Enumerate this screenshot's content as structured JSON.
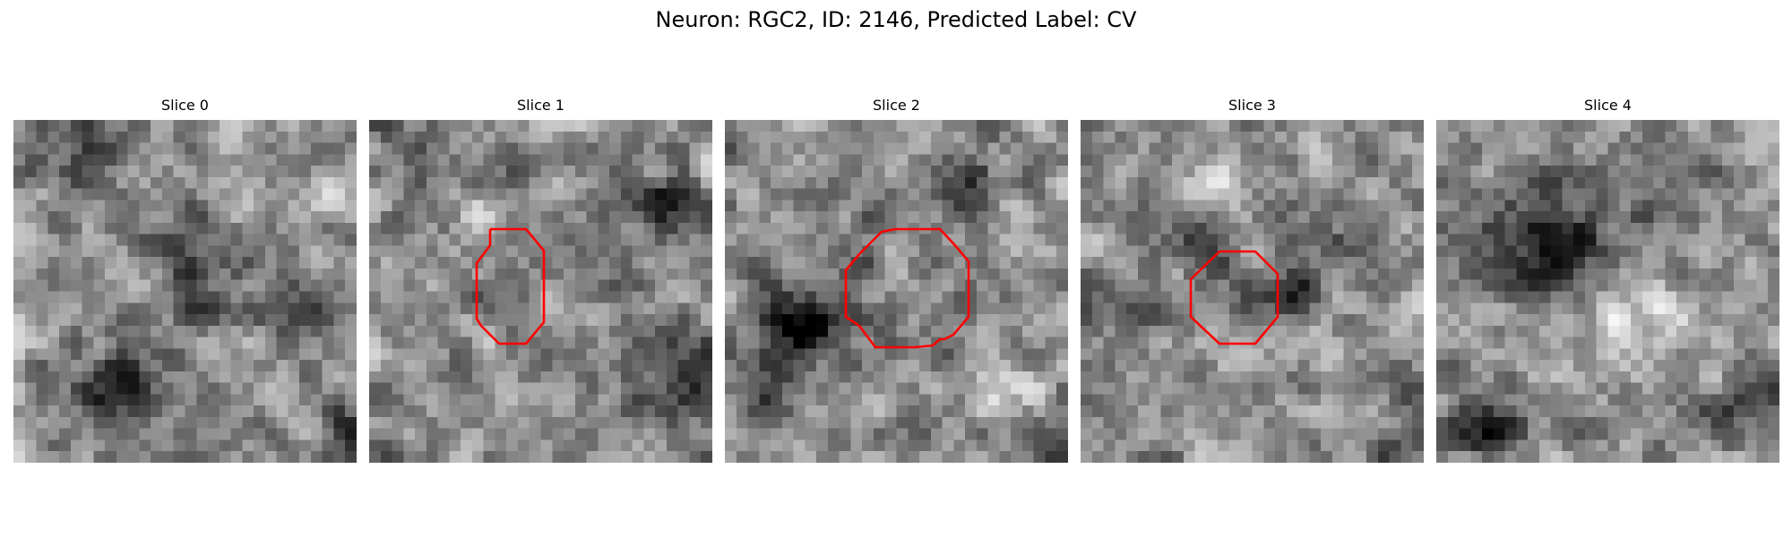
{
  "figure": {
    "title": "Neuron: RGC2, ID: 2146, Predicted Label: CV"
  },
  "colormap": "gray",
  "contour_color": "#ff0000",
  "panels": [
    {
      "title": "Slice 0",
      "has_contour": false
    },
    {
      "title": "Slice 1",
      "has_contour": true
    },
    {
      "title": "Slice 2",
      "has_contour": true
    },
    {
      "title": "Slice 3",
      "has_contour": true
    },
    {
      "title": "Slice 4",
      "has_contour": false
    }
  ]
}
